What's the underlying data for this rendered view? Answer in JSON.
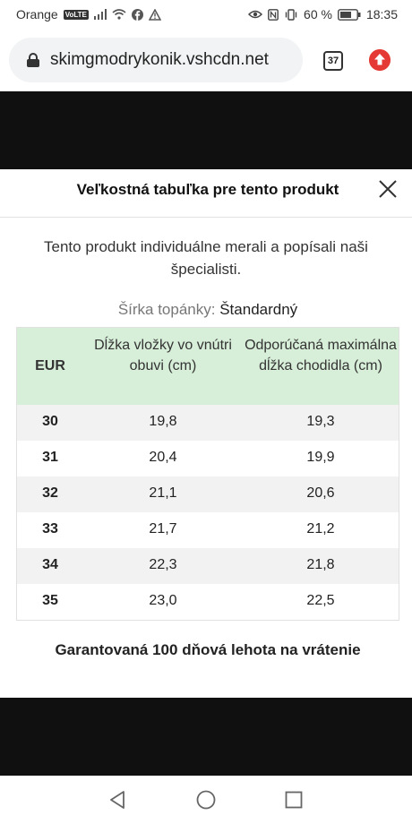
{
  "status_bar": {
    "carrier": "Orange",
    "volte_badge": "VoLTE",
    "battery": "60 %",
    "time": "18:35"
  },
  "browser": {
    "url": "skimgmodrykonik.vshcdn.net",
    "tab_count": "37"
  },
  "modal": {
    "title": "Veľkostná tabuľka pre tento produkt",
    "intro": "Tento produkt individuálne merali a popísali naši špecialisti.",
    "width_label": "Šírka topánky:",
    "width_value": "Štandardný",
    "table": {
      "headers": [
        "EUR",
        "Dĺžka vložky vo vnútri obuvi (cm)",
        "Odporúčaná maximálna dĺžka chodidla (cm)"
      ],
      "rows": [
        [
          "30",
          "19,8",
          "19,3"
        ],
        [
          "31",
          "20,4",
          "19,9"
        ],
        [
          "32",
          "21,1",
          "20,6"
        ],
        [
          "33",
          "21,7",
          "21,2"
        ],
        [
          "34",
          "22,3",
          "21,8"
        ],
        [
          "35",
          "23,0",
          "22,5"
        ]
      ]
    },
    "guarantee": "Garantovaná 100 dňová lehota na vrátenie"
  },
  "colors": {
    "header_row": "#d7eed8",
    "striped_row": "#f2f2f2",
    "dark_band": "#101010",
    "update_button": "#e53935"
  }
}
